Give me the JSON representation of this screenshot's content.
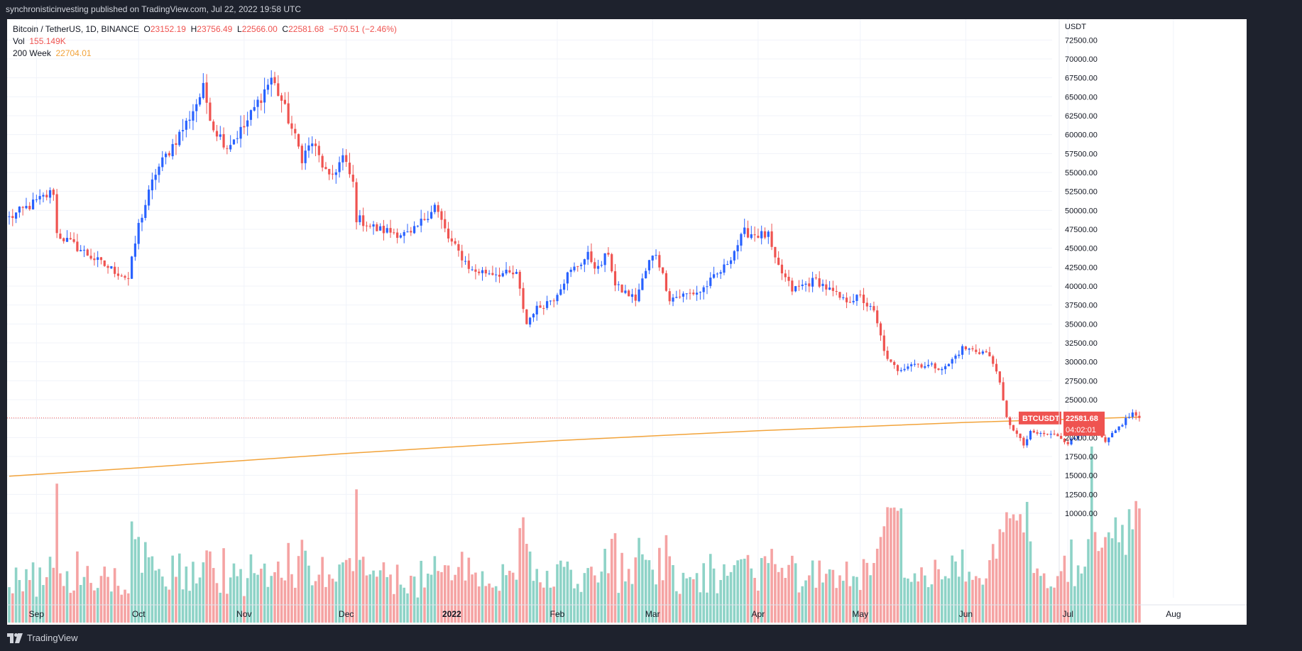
{
  "header": {
    "attribution": "synchronisticinvesting published on TradingView.com, Jul 22, 2022 19:58 UTC"
  },
  "legend": {
    "symbol": "Bitcoin / TetherUS, 1D, BINANCE",
    "o_label": "O",
    "o": "23152.19",
    "h_label": "H",
    "h": "23756.49",
    "l_label": "L",
    "l": "22566.00",
    "c_label": "C",
    "c": "22581.68",
    "change": "−570.51 (−2.46%)",
    "vol_label": "Vol",
    "vol": "155.149K",
    "ma_label": "200 Week",
    "ma": "22704.01"
  },
  "price_tag": {
    "symbol": "BTCUSDT",
    "price": "22581.68",
    "countdown": "04:02:01"
  },
  "footer": {
    "brand": "TradingView"
  },
  "colors": {
    "up": "#2962ff",
    "down": "#ef5350",
    "vol_up": "#8ed3c7",
    "vol_down": "#f5a3a3",
    "ma": "#f2a33a",
    "bg": "#ffffff",
    "frame": "#1e222d"
  },
  "chart_data": {
    "type": "candlestick",
    "currency": "USDT",
    "y_ticks": [
      "72500.00",
      "70000.00",
      "67500.00",
      "65000.00",
      "62500.00",
      "60000.00",
      "57500.00",
      "55000.00",
      "52500.00",
      "50000.00",
      "47500.00",
      "45000.00",
      "42500.00",
      "40000.00",
      "37500.00",
      "35000.00",
      "32500.00",
      "30000.00",
      "27500.00",
      "25000.00",
      "22500.00",
      "20000.00",
      "17500.00",
      "15000.00",
      "12500.00",
      "10000.00"
    ],
    "ylim": [
      9300,
      74200
    ],
    "x_labels": [
      {
        "label": "Sep",
        "date": "2021-09-01"
      },
      {
        "label": "Oct",
        "date": "2021-10-01"
      },
      {
        "label": "Nov",
        "date": "2021-11-01"
      },
      {
        "label": "Dec",
        "date": "2021-12-01"
      },
      {
        "label": "2022",
        "date": "2022-01-01"
      },
      {
        "label": "Feb",
        "date": "2022-02-01"
      },
      {
        "label": "Mar",
        "date": "2022-03-01"
      },
      {
        "label": "Apr",
        "date": "2022-04-01"
      },
      {
        "label": "May",
        "date": "2022-05-01"
      },
      {
        "label": "Jun",
        "date": "2022-06-01"
      },
      {
        "label": "Jul",
        "date": "2022-07-01"
      },
      {
        "label": "Aug",
        "date": "2022-08-01"
      }
    ],
    "start_date": "2021-08-24",
    "end_date": "2022-07-22",
    "last_price": 22581.68,
    "ma_200w": {
      "name": "200 Week",
      "points": [
        [
          "2021-08-24",
          14900
        ],
        [
          "2021-10-01",
          16000
        ],
        [
          "2021-12-01",
          17900
        ],
        [
          "2022-02-01",
          19600
        ],
        [
          "2022-04-01",
          20900
        ],
        [
          "2022-06-01",
          22000
        ],
        [
          "2022-07-22",
          22704
        ]
      ]
    },
    "anchors": [
      [
        "2021-08-24",
        49000
      ],
      [
        "2021-09-06",
        52500
      ],
      [
        "2021-09-07",
        46900
      ],
      [
        "2021-09-20",
        43000
      ],
      [
        "2021-09-28",
        41000
      ],
      [
        "2021-10-01",
        48000
      ],
      [
        "2021-10-06",
        55000
      ],
      [
        "2021-10-15",
        61500
      ],
      [
        "2021-10-20",
        66000
      ],
      [
        "2021-10-23",
        61000
      ],
      [
        "2021-10-27",
        58500
      ],
      [
        "2021-11-01",
        61000
      ],
      [
        "2021-11-09",
        67500
      ],
      [
        "2021-11-12",
        64500
      ],
      [
        "2021-11-18",
        57000
      ],
      [
        "2021-11-21",
        59000
      ],
      [
        "2021-11-26",
        54000
      ],
      [
        "2021-11-30",
        57000
      ],
      [
        "2021-12-03",
        53500
      ],
      [
        "2021-12-04",
        49000
      ],
      [
        "2021-12-10",
        47500
      ],
      [
        "2021-12-20",
        46700
      ],
      [
        "2021-12-27",
        50700
      ],
      [
        "2021-12-31",
        46300
      ],
      [
        "2022-01-07",
        42000
      ],
      [
        "2022-01-20",
        41500
      ],
      [
        "2022-01-23",
        35000
      ],
      [
        "2022-01-25",
        36700
      ],
      [
        "2022-01-31",
        38500
      ],
      [
        "2022-02-04",
        41500
      ],
      [
        "2022-02-10",
        44000
      ],
      [
        "2022-02-13",
        42200
      ],
      [
        "2022-02-16",
        44500
      ],
      [
        "2022-02-18",
        40000
      ],
      [
        "2022-02-24",
        38300
      ],
      [
        "2022-02-28",
        43200
      ],
      [
        "2022-03-02",
        44400
      ],
      [
        "2022-03-06",
        38400
      ],
      [
        "2022-03-15",
        39300
      ],
      [
        "2022-03-22",
        42400
      ],
      [
        "2022-03-28",
        47100
      ],
      [
        "2022-04-04",
        46600
      ],
      [
        "2022-04-06",
        43200
      ],
      [
        "2022-04-11",
        39500
      ],
      [
        "2022-04-18",
        40800
      ],
      [
        "2022-04-26",
        38100
      ],
      [
        "2022-05-01",
        38500
      ],
      [
        "2022-05-05",
        36500
      ],
      [
        "2022-05-09",
        30100
      ],
      [
        "2022-05-12",
        29000
      ],
      [
        "2022-05-16",
        29800
      ],
      [
        "2022-05-26",
        29200
      ],
      [
        "2022-05-31",
        31800
      ],
      [
        "2022-06-07",
        31200
      ],
      [
        "2022-06-10",
        29100
      ],
      [
        "2022-06-13",
        22500
      ],
      [
        "2022-06-18",
        19000
      ],
      [
        "2022-06-20",
        20600
      ],
      [
        "2022-06-28",
        20300
      ],
      [
        "2022-07-01",
        19300
      ],
      [
        "2022-07-08",
        21600
      ],
      [
        "2022-07-12",
        19300
      ],
      [
        "2022-07-18",
        22400
      ],
      [
        "2022-07-20",
        23200
      ],
      [
        "2022-07-22",
        22582
      ]
    ],
    "volume_scale": "Vol (K)",
    "volume_ylim": [
      0,
      200
    ]
  }
}
